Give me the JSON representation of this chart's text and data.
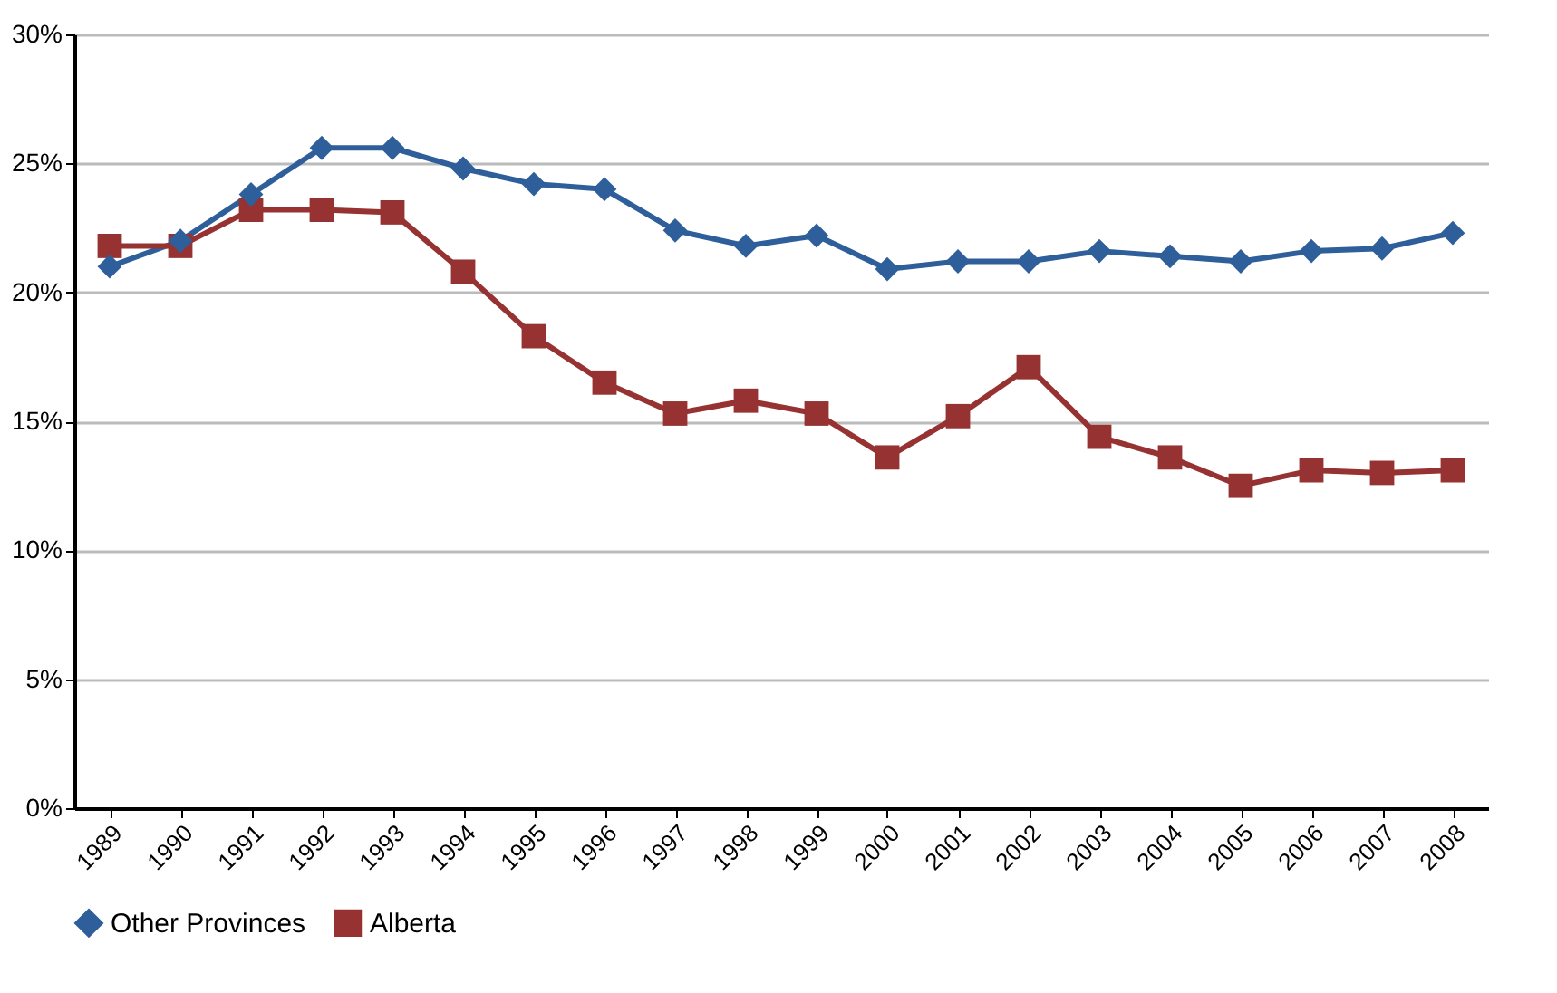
{
  "chart_data": {
    "type": "line",
    "categories": [
      "1989",
      "1990",
      "1991",
      "1992",
      "1993",
      "1994",
      "1995",
      "1996",
      "1997",
      "1998",
      "1999",
      "2000",
      "2001",
      "2002",
      "2003",
      "2004",
      "2005",
      "2006",
      "2007",
      "2008"
    ],
    "series": [
      {
        "name": "Other Provinces",
        "color": "#2e5f9a",
        "marker": "diamond",
        "values": [
          21.0,
          22.0,
          23.8,
          25.6,
          25.6,
          24.8,
          24.2,
          24.0,
          22.4,
          21.8,
          22.2,
          20.9,
          21.2,
          21.2,
          21.6,
          21.4,
          21.2,
          21.6,
          21.7,
          22.3
        ]
      },
      {
        "name": "Alberta",
        "color": "#963232",
        "marker": "square",
        "values": [
          21.8,
          21.8,
          23.2,
          23.2,
          23.1,
          20.8,
          18.3,
          16.5,
          15.3,
          15.8,
          15.3,
          13.6,
          15.2,
          17.1,
          14.4,
          13.6,
          12.5,
          13.1,
          13.0,
          13.1
        ]
      }
    ],
    "ylim": [
      0,
      30
    ],
    "yticks": [
      {
        "value": 0,
        "label": "0%"
      },
      {
        "value": 5,
        "label": "5%"
      },
      {
        "value": 10,
        "label": "10%"
      },
      {
        "value": 15,
        "label": "15%"
      },
      {
        "value": 20,
        "label": "20%"
      },
      {
        "value": 25,
        "label": "25%"
      },
      {
        "value": 30,
        "label": "30%"
      }
    ],
    "grid": "y",
    "legend": "bottom",
    "line_style": "solid"
  }
}
